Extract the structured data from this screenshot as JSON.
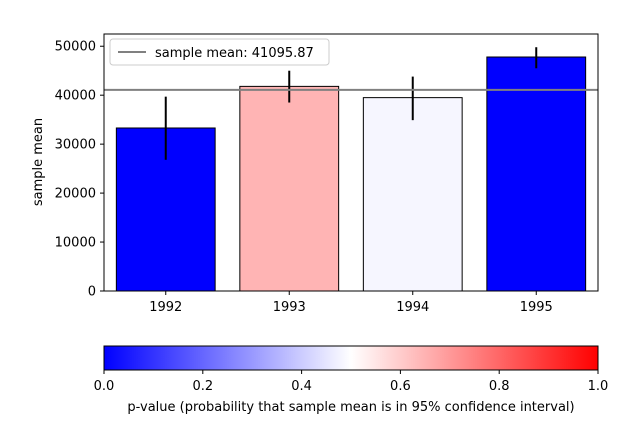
{
  "chart_data": [
    {
      "type": "bar",
      "categories": [
        "1992",
        "1993",
        "1994",
        "1995"
      ],
      "values": [
        33300,
        41800,
        39500,
        47800
      ],
      "error_low": [
        26800,
        38500,
        34900,
        45500
      ],
      "error_high": [
        39700,
        45000,
        43800,
        49800
      ],
      "bar_colors": [
        "#0000ff",
        "#ffb4b4",
        "#f6f6ff",
        "#0000ff"
      ],
      "reference_line": {
        "value": 41095.87,
        "label": "sample mean: 41095.87",
        "color": "#808080"
      },
      "ylabel": "sample mean",
      "xlabel": "",
      "ylim": [
        0,
        52500
      ],
      "yticks": [
        0,
        10000,
        20000,
        30000,
        40000,
        50000
      ],
      "legend_position": "top-left",
      "grid": false
    },
    {
      "type": "colorbar",
      "colormap": [
        "#0000ff",
        "#ffffff",
        "#ff0000"
      ],
      "range": [
        0.0,
        1.0
      ],
      "ticks": [
        "0.0",
        "0.2",
        "0.4",
        "0.6",
        "0.8",
        "1.0"
      ],
      "xlabel": "p-value (probability that sample mean is in 95% confidence interval)"
    }
  ]
}
